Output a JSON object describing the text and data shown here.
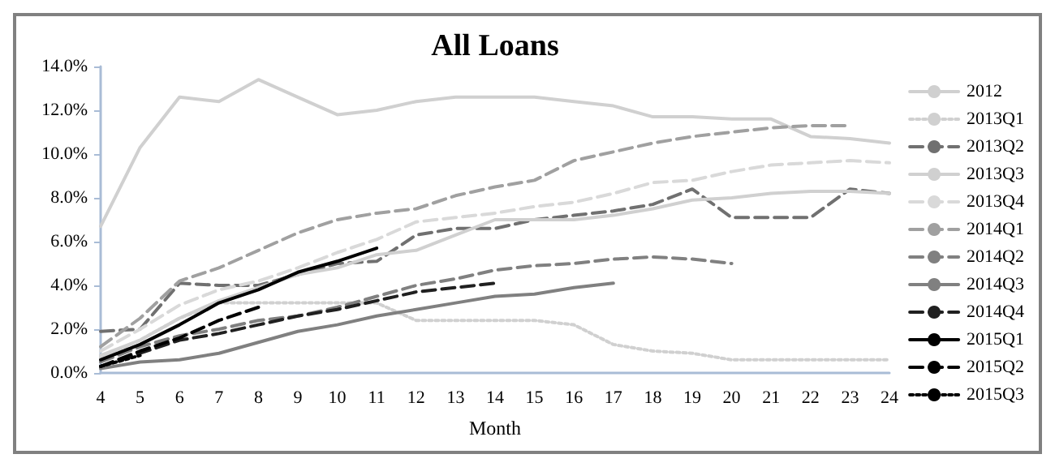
{
  "chart_data": {
    "type": "line",
    "title": "All Loans",
    "xlabel": "Month",
    "categories": [
      "4",
      "5",
      "6",
      "7",
      "8",
      "9",
      "10",
      "11",
      "12",
      "13",
      "14",
      "15",
      "16",
      "17",
      "18",
      "19",
      "20",
      "21",
      "22",
      "23",
      "24"
    ],
    "ylim": [
      0,
      14
    ],
    "yticks": [
      {
        "value": 0,
        "label": "0.0%"
      },
      {
        "value": 2,
        "label": "2.0%"
      },
      {
        "value": 4,
        "label": "4.0%"
      },
      {
        "value": 6,
        "label": "6.0%"
      },
      {
        "value": 8,
        "label": "8.0%"
      },
      {
        "value": 10,
        "label": "10.0%"
      },
      {
        "value": 12,
        "label": "12.0%"
      },
      {
        "value": 14,
        "label": "14.0%"
      }
    ],
    "grid": false,
    "legend": "right",
    "marker": "none",
    "series": [
      {
        "name": "2012",
        "color": "#d0d0d0",
        "line_style": "solid",
        "values": [
          6.7,
          10.3,
          12.6,
          12.4,
          13.4,
          12.6,
          11.8,
          12.0,
          12.4,
          12.6,
          12.6,
          12.6,
          12.4,
          12.2,
          11.7,
          11.7,
          11.6,
          11.6,
          10.8,
          10.7,
          10.5
        ]
      },
      {
        "name": "2013Q1",
        "color": "#d0d0d0",
        "line_style": "dotted",
        "values": [
          0.7,
          1.5,
          2.5,
          3.2,
          3.2,
          3.2,
          3.2,
          3.2,
          2.4,
          2.4,
          2.4,
          2.4,
          2.2,
          1.3,
          1.0,
          0.9,
          0.6,
          0.6,
          0.6,
          0.6,
          0.6
        ]
      },
      {
        "name": "2013Q2",
        "color": "#707070",
        "line_style": "dashed",
        "values": [
          1.9,
          2.0,
          4.1,
          4.0,
          4.0,
          4.5,
          5.0,
          5.1,
          6.3,
          6.6,
          6.6,
          7.0,
          7.2,
          7.4,
          7.7,
          8.4,
          7.1,
          7.1,
          7.1,
          8.4,
          8.2
        ]
      },
      {
        "name": "2013Q3",
        "color": "#d0d0d0",
        "line_style": "solid",
        "values": [
          0.8,
          1.5,
          2.5,
          3.3,
          3.9,
          4.5,
          4.8,
          5.4,
          5.6,
          6.3,
          7.0,
          7.0,
          7.0,
          7.2,
          7.5,
          7.9,
          8.0,
          8.2,
          8.3,
          8.3,
          8.2
        ]
      },
      {
        "name": "2013Q4",
        "color": "#d9d9d9",
        "line_style": "dashed",
        "values": [
          1.0,
          2.0,
          3.1,
          3.8,
          4.2,
          4.8,
          5.5,
          6.1,
          6.9,
          7.1,
          7.3,
          7.6,
          7.8,
          8.2,
          8.7,
          8.8,
          9.2,
          9.5,
          9.6,
          9.7,
          9.6
        ]
      },
      {
        "name": "2014Q1",
        "color": "#a0a0a0",
        "line_style": "dashed",
        "values": [
          1.2,
          2.5,
          4.2,
          4.8,
          5.6,
          6.4,
          7.0,
          7.3,
          7.5,
          8.1,
          8.5,
          8.8,
          9.7,
          10.1,
          10.5,
          10.8,
          11.0,
          11.2,
          11.3,
          11.3,
          null
        ]
      },
      {
        "name": "2014Q2",
        "color": "#808080",
        "line_style": "dashed",
        "values": [
          0.5,
          1.2,
          1.7,
          2.0,
          2.4,
          2.6,
          3.0,
          3.5,
          4.0,
          4.3,
          4.7,
          4.9,
          5.0,
          5.2,
          5.3,
          5.2,
          5.0,
          null,
          null,
          null,
          null
        ]
      },
      {
        "name": "2014Q3",
        "color": "#808080",
        "line_style": "solid",
        "values": [
          0.2,
          0.5,
          0.6,
          0.9,
          1.4,
          1.9,
          2.2,
          2.6,
          2.9,
          3.2,
          3.5,
          3.6,
          3.9,
          4.1,
          null,
          null,
          null,
          null,
          null,
          null,
          null
        ]
      },
      {
        "name": "2014Q4",
        "color": "#202020",
        "line_style": "dashed",
        "values": [
          0.3,
          0.9,
          1.5,
          1.8,
          2.2,
          2.6,
          2.9,
          3.3,
          3.7,
          3.9,
          4.1,
          null,
          null,
          null,
          null,
          null,
          null,
          null,
          null,
          null,
          null
        ]
      },
      {
        "name": "2015Q1",
        "color": "#000000",
        "line_style": "solid",
        "values": [
          0.6,
          1.3,
          2.2,
          3.2,
          3.8,
          4.6,
          5.1,
          5.7,
          null,
          null,
          null,
          null,
          null,
          null,
          null,
          null,
          null,
          null,
          null,
          null,
          null
        ]
      },
      {
        "name": "2015Q2",
        "color": "#000000",
        "line_style": "dashed",
        "values": [
          0.3,
          1.0,
          1.6,
          2.4,
          3.0,
          null,
          null,
          null,
          null,
          null,
          null,
          null,
          null,
          null,
          null,
          null,
          null,
          null,
          null,
          null,
          null
        ]
      },
      {
        "name": "2015Q3",
        "color": "#000000",
        "line_style": "dotted",
        "values": [
          0.3,
          0.8,
          null,
          null,
          null,
          null,
          null,
          null,
          null,
          null,
          null,
          null,
          null,
          null,
          null,
          null,
          null,
          null,
          null,
          null,
          null
        ]
      }
    ]
  }
}
